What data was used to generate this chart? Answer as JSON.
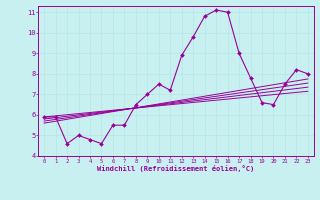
{
  "xlabel": "Windchill (Refroidissement éolien,°C)",
  "bg_color": "#c8f0f0",
  "line_color": "#990099",
  "grid_color": "#b8e8e8",
  "x_main": [
    0,
    1,
    2,
    3,
    4,
    5,
    6,
    7,
    8,
    9,
    10,
    11,
    12,
    13,
    14,
    15,
    16,
    17,
    18,
    19,
    20,
    21,
    22,
    23
  ],
  "y_main": [
    5.9,
    5.9,
    4.6,
    5.0,
    4.8,
    4.6,
    5.5,
    5.5,
    6.5,
    7.0,
    7.5,
    7.2,
    8.9,
    9.8,
    10.8,
    11.1,
    11.0,
    9.0,
    7.8,
    6.6,
    6.5,
    7.5,
    8.2,
    8.0
  ],
  "regression_lines": [
    {
      "x": [
        0,
        23
      ],
      "y": [
        5.9,
        7.15
      ]
    },
    {
      "x": [
        0,
        23
      ],
      "y": [
        5.8,
        7.35
      ]
    },
    {
      "x": [
        0,
        23
      ],
      "y": [
        5.7,
        7.55
      ]
    },
    {
      "x": [
        0,
        23
      ],
      "y": [
        5.6,
        7.75
      ]
    }
  ],
  "xlim": [
    -0.5,
    23.5
  ],
  "ylim": [
    4,
    11.3
  ],
  "yticks": [
    4,
    5,
    6,
    7,
    8,
    9,
    10,
    11
  ],
  "xticks": [
    0,
    1,
    2,
    3,
    4,
    5,
    6,
    7,
    8,
    9,
    10,
    11,
    12,
    13,
    14,
    15,
    16,
    17,
    18,
    19,
    20,
    21,
    22,
    23
  ]
}
